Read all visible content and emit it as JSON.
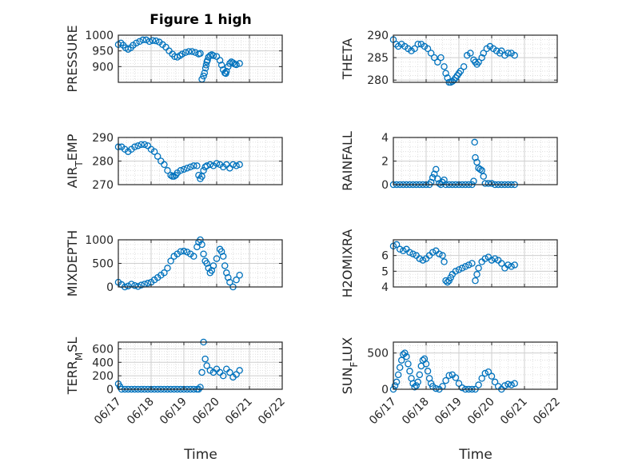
{
  "figure": {
    "title": "Figure 1 high"
  },
  "chart_data": [
    {
      "id": "pressure",
      "type": "scatter",
      "ylabel": "PRESSURE",
      "yticks": [
        900,
        950,
        1000
      ],
      "ylim": [
        850,
        1000
      ],
      "xlim": [
        0,
        5
      ],
      "xticks": [
        "06/17",
        "06/18",
        "06/19",
        "06/20",
        "06/21",
        "06/22"
      ],
      "grid": true,
      "x": [
        0.0,
        0.08,
        0.15,
        0.22,
        0.3,
        0.38,
        0.45,
        0.55,
        0.65,
        0.75,
        0.85,
        0.95,
        1.05,
        1.15,
        1.25,
        1.35,
        1.45,
        1.55,
        1.65,
        1.72,
        1.8,
        1.88,
        1.95,
        2.05,
        2.15,
        2.25,
        2.35,
        2.45,
        2.5,
        2.55,
        2.6,
        2.63,
        2.66,
        2.68,
        2.7,
        2.72,
        2.75,
        2.8,
        2.85,
        2.9,
        3.0,
        3.1,
        3.15,
        3.2,
        3.25,
        3.28,
        3.3,
        3.35,
        3.4,
        3.45,
        3.5,
        3.55,
        3.6,
        3.7
      ],
      "y": [
        970,
        975,
        968,
        960,
        955,
        960,
        968,
        975,
        980,
        985,
        985,
        980,
        983,
        982,
        978,
        970,
        962,
        950,
        940,
        932,
        930,
        935,
        940,
        945,
        948,
        948,
        945,
        940,
        942,
        860,
        870,
        880,
        895,
        905,
        915,
        920,
        930,
        935,
        938,
        935,
        932,
        920,
        905,
        890,
        880,
        878,
        885,
        900,
        910,
        915,
        912,
        908,
        906,
        910
      ]
    },
    {
      "id": "theta",
      "type": "scatter",
      "ylabel": "THETA",
      "yticks": [
        280,
        285,
        290
      ],
      "ylim": [
        279.5,
        290
      ],
      "xlim": [
        0,
        5
      ],
      "xticks": [
        "06/17",
        "06/18",
        "06/19",
        "06/20",
        "06/21",
        "06/22"
      ],
      "grid": true,
      "x": [
        0.0,
        0.08,
        0.15,
        0.25,
        0.35,
        0.45,
        0.55,
        0.65,
        0.75,
        0.85,
        0.95,
        1.05,
        1.15,
        1.25,
        1.35,
        1.45,
        1.55,
        1.6,
        1.65,
        1.7,
        1.75,
        1.8,
        1.85,
        1.9,
        1.95,
        2.0,
        2.05,
        2.15,
        2.25,
        2.35,
        2.45,
        2.5,
        2.55,
        2.6,
        2.7,
        2.75,
        2.85,
        2.95,
        3.05,
        3.15,
        3.25,
        3.3,
        3.4,
        3.5,
        3.6,
        3.7
      ],
      "y": [
        289,
        288,
        287.5,
        288,
        287.5,
        287,
        286.5,
        287,
        288,
        288,
        287.5,
        287,
        286,
        285,
        284,
        285,
        283,
        281.5,
        280.5,
        279.5,
        279.5,
        279.7,
        280,
        280.5,
        281,
        281.5,
        282,
        283,
        285.5,
        286,
        284.5,
        284,
        283.5,
        284,
        285,
        286,
        287,
        287.5,
        287,
        286.5,
        286,
        286.5,
        285.5,
        286,
        286,
        285.5
      ]
    },
    {
      "id": "air_temp",
      "type": "scatter",
      "ylabel": "AIR_TEMP",
      "yticks": [
        270,
        280,
        290
      ],
      "ylim": [
        270,
        290
      ],
      "xlim": [
        0,
        5
      ],
      "xticks": [
        "06/17",
        "06/18",
        "06/19",
        "06/20",
        "06/21",
        "06/22"
      ],
      "grid": true,
      "x": [
        0.0,
        0.1,
        0.2,
        0.3,
        0.4,
        0.5,
        0.6,
        0.7,
        0.8,
        0.9,
        1.0,
        1.1,
        1.2,
        1.3,
        1.4,
        1.5,
        1.6,
        1.65,
        1.7,
        1.75,
        1.8,
        1.9,
        2.0,
        2.1,
        2.2,
        2.3,
        2.4,
        2.45,
        2.5,
        2.55,
        2.6,
        2.65,
        2.7,
        2.8,
        2.9,
        3.0,
        3.1,
        3.2,
        3.3,
        3.4,
        3.5,
        3.6,
        3.7
      ],
      "y": [
        286,
        286,
        285,
        284,
        285,
        286,
        286.5,
        287,
        287,
        286.5,
        285,
        284,
        282,
        280,
        278.5,
        276,
        274,
        273.5,
        273.5,
        274,
        275,
        276,
        276.5,
        277,
        277.5,
        278,
        278,
        274,
        272.5,
        273.5,
        276,
        277.5,
        278,
        278.5,
        278,
        279,
        278.5,
        277.5,
        278.5,
        277,
        278.5,
        278,
        278.5
      ]
    },
    {
      "id": "rainfall",
      "type": "scatter",
      "ylabel": "RAINFALL",
      "yticks": [
        0,
        2,
        4
      ],
      "ylim": [
        0,
        4
      ],
      "xlim": [
        0,
        5
      ],
      "xticks": [
        "06/17",
        "06/18",
        "06/19",
        "06/20",
        "06/21",
        "06/22"
      ],
      "grid": true,
      "x": [
        0.0,
        0.1,
        0.2,
        0.3,
        0.4,
        0.5,
        0.6,
        0.7,
        0.8,
        0.9,
        1.0,
        1.1,
        1.15,
        1.2,
        1.25,
        1.3,
        1.35,
        1.4,
        1.45,
        1.5,
        1.55,
        1.6,
        1.7,
        1.8,
        1.9,
        2.0,
        2.1,
        2.2,
        2.3,
        2.4,
        2.45,
        2.48,
        2.5,
        2.55,
        2.6,
        2.65,
        2.7,
        2.75,
        2.8,
        2.9,
        3.0,
        3.1,
        3.2,
        3.3,
        3.4,
        3.5,
        3.6,
        3.7
      ],
      "y": [
        0,
        0,
        0,
        0,
        0,
        0,
        0,
        0,
        0,
        0,
        0,
        0,
        0.2,
        0.6,
        0.9,
        1.3,
        0.5,
        0.1,
        0,
        0.2,
        0.4,
        0,
        0,
        0,
        0,
        0,
        0,
        0,
        0,
        0,
        0.3,
        3.6,
        2.3,
        1.9,
        1.4,
        1.3,
        1.2,
        0.7,
        0.1,
        0.1,
        0.1,
        0,
        0,
        0,
        0,
        0,
        0,
        0
      ]
    },
    {
      "id": "mixdepth",
      "type": "scatter",
      "ylabel": "MIXDEPTH",
      "yticks": [
        0,
        500,
        1000
      ],
      "ylim": [
        0,
        1000
      ],
      "xlim": [
        0,
        5
      ],
      "xticks": [
        "06/17",
        "06/18",
        "06/19",
        "06/20",
        "06/21",
        "06/22"
      ],
      "grid": true,
      "x": [
        0.0,
        0.1,
        0.2,
        0.3,
        0.4,
        0.5,
        0.6,
        0.7,
        0.8,
        0.9,
        1.0,
        1.1,
        1.2,
        1.3,
        1.4,
        1.5,
        1.6,
        1.7,
        1.8,
        1.9,
        2.0,
        2.1,
        2.2,
        2.3,
        2.4,
        2.45,
        2.5,
        2.55,
        2.6,
        2.65,
        2.7,
        2.75,
        2.8,
        2.85,
        2.9,
        3.0,
        3.1,
        3.15,
        3.2,
        3.25,
        3.3,
        3.35,
        3.4,
        3.5,
        3.6,
        3.7
      ],
      "y": [
        100,
        50,
        0,
        20,
        60,
        30,
        10,
        40,
        60,
        80,
        100,
        150,
        200,
        250,
        300,
        400,
        550,
        650,
        700,
        750,
        760,
        740,
        700,
        650,
        850,
        950,
        1000,
        900,
        700,
        550,
        500,
        400,
        300,
        350,
        450,
        600,
        800,
        750,
        650,
        450,
        300,
        200,
        100,
        0,
        150,
        250
      ]
    },
    {
      "id": "h2omixra",
      "type": "scatter",
      "ylabel": "H2OMIXRA",
      "yticks": [
        4,
        5,
        6
      ],
      "ylim": [
        4,
        7
      ],
      "xlim": [
        0,
        5
      ],
      "xticks": [
        "06/17",
        "06/18",
        "06/19",
        "06/20",
        "06/21",
        "06/22"
      ],
      "grid": true,
      "x": [
        0.0,
        0.1,
        0.2,
        0.3,
        0.4,
        0.5,
        0.6,
        0.7,
        0.8,
        0.9,
        1.0,
        1.1,
        1.2,
        1.3,
        1.4,
        1.5,
        1.55,
        1.6,
        1.65,
        1.7,
        1.75,
        1.8,
        1.9,
        2.0,
        2.1,
        2.2,
        2.3,
        2.4,
        2.5,
        2.55,
        2.6,
        2.7,
        2.8,
        2.9,
        3.0,
        3.1,
        3.2,
        3.3,
        3.4,
        3.5,
        3.6,
        3.7
      ],
      "y": [
        6.6,
        6.7,
        6.4,
        6.3,
        6.4,
        6.2,
        6.1,
        6.0,
        5.8,
        5.7,
        5.8,
        6.0,
        6.2,
        6.3,
        6.1,
        6.0,
        5.6,
        4.4,
        4.3,
        4.4,
        4.6,
        4.8,
        5.0,
        5.1,
        5.2,
        5.3,
        5.4,
        5.5,
        4.4,
        4.8,
        5.2,
        5.6,
        5.8,
        5.9,
        5.7,
        5.8,
        5.7,
        5.5,
        5.2,
        5.4,
        5.3,
        5.4
      ]
    },
    {
      "id": "terr_msl",
      "type": "scatter",
      "ylabel": "TERR_MSL",
      "yticks": [
        0,
        200,
        400,
        600
      ],
      "ylim": [
        0,
        700
      ],
      "xlim": [
        0,
        5
      ],
      "xticks": [
        "06/17",
        "06/18",
        "06/19",
        "06/20",
        "06/21",
        "06/22"
      ],
      "grid": true,
      "x": [
        0.0,
        0.05,
        0.1,
        0.2,
        0.3,
        0.4,
        0.5,
        0.6,
        0.7,
        0.8,
        0.9,
        1.0,
        1.1,
        1.2,
        1.3,
        1.4,
        1.5,
        1.6,
        1.7,
        1.8,
        1.9,
        2.0,
        2.1,
        2.2,
        2.3,
        2.4,
        2.45,
        2.5,
        2.55,
        2.6,
        2.65,
        2.7,
        2.8,
        2.9,
        3.0,
        3.1,
        3.2,
        3.3,
        3.4,
        3.5,
        3.6,
        3.7
      ],
      "y": [
        80,
        40,
        0,
        0,
        0,
        0,
        0,
        0,
        0,
        0,
        0,
        0,
        0,
        0,
        0,
        0,
        0,
        0,
        0,
        0,
        0,
        0,
        0,
        0,
        0,
        0,
        0,
        30,
        250,
        700,
        450,
        350,
        280,
        250,
        300,
        250,
        200,
        300,
        250,
        180,
        220,
        280
      ]
    },
    {
      "id": "sun_flux",
      "type": "scatter",
      "ylabel": "SUN_FLUX",
      "yticks": [
        0,
        500
      ],
      "ylim": [
        0,
        650
      ],
      "xlim": [
        0,
        5
      ],
      "xticks": [
        "06/17",
        "06/18",
        "06/19",
        "06/20",
        "06/21",
        "06/22"
      ],
      "grid": true,
      "x": [
        0.0,
        0.05,
        0.1,
        0.15,
        0.2,
        0.25,
        0.3,
        0.35,
        0.4,
        0.45,
        0.5,
        0.55,
        0.6,
        0.65,
        0.7,
        0.75,
        0.8,
        0.85,
        0.9,
        0.95,
        1.0,
        1.05,
        1.1,
        1.15,
        1.2,
        1.3,
        1.4,
        1.5,
        1.6,
        1.7,
        1.8,
        1.9,
        2.0,
        2.1,
        2.2,
        2.3,
        2.4,
        2.5,
        2.6,
        2.7,
        2.8,
        2.9,
        3.0,
        3.1,
        3.2,
        3.3,
        3.4,
        3.5,
        3.6,
        3.7
      ],
      "y": [
        0,
        50,
        100,
        200,
        300,
        400,
        480,
        500,
        450,
        350,
        250,
        150,
        80,
        30,
        50,
        100,
        200,
        320,
        400,
        420,
        350,
        250,
        150,
        80,
        40,
        10,
        0,
        40,
        120,
        190,
        200,
        160,
        80,
        20,
        0,
        0,
        0,
        0,
        60,
        150,
        220,
        240,
        180,
        100,
        40,
        0,
        50,
        70,
        60,
        80
      ]
    }
  ],
  "axis_labels": {
    "xlabel": "Time",
    "ylabels": {
      "pressure": {
        "main": "PRESSURE"
      },
      "theta": {
        "main": "THETA"
      },
      "air_temp": {
        "pre": "AIR",
        "sub": "T",
        "post": "EMP"
      },
      "rainfall": {
        "main": "RAINFALL"
      },
      "mixdepth": {
        "main": "MIXDEPTH"
      },
      "h2omixra": {
        "main": "H2OMIXRA"
      },
      "terr_msl": {
        "pre": "TERR",
        "sub": "M",
        "post": "SL"
      },
      "sun_flux": {
        "pre": "SUN",
        "sub": "F",
        "post": "LUX"
      }
    }
  },
  "colors": {
    "marker": "#0072BD",
    "axes": "#262626",
    "grid": "#d9d9d9",
    "background": "#ffffff"
  }
}
